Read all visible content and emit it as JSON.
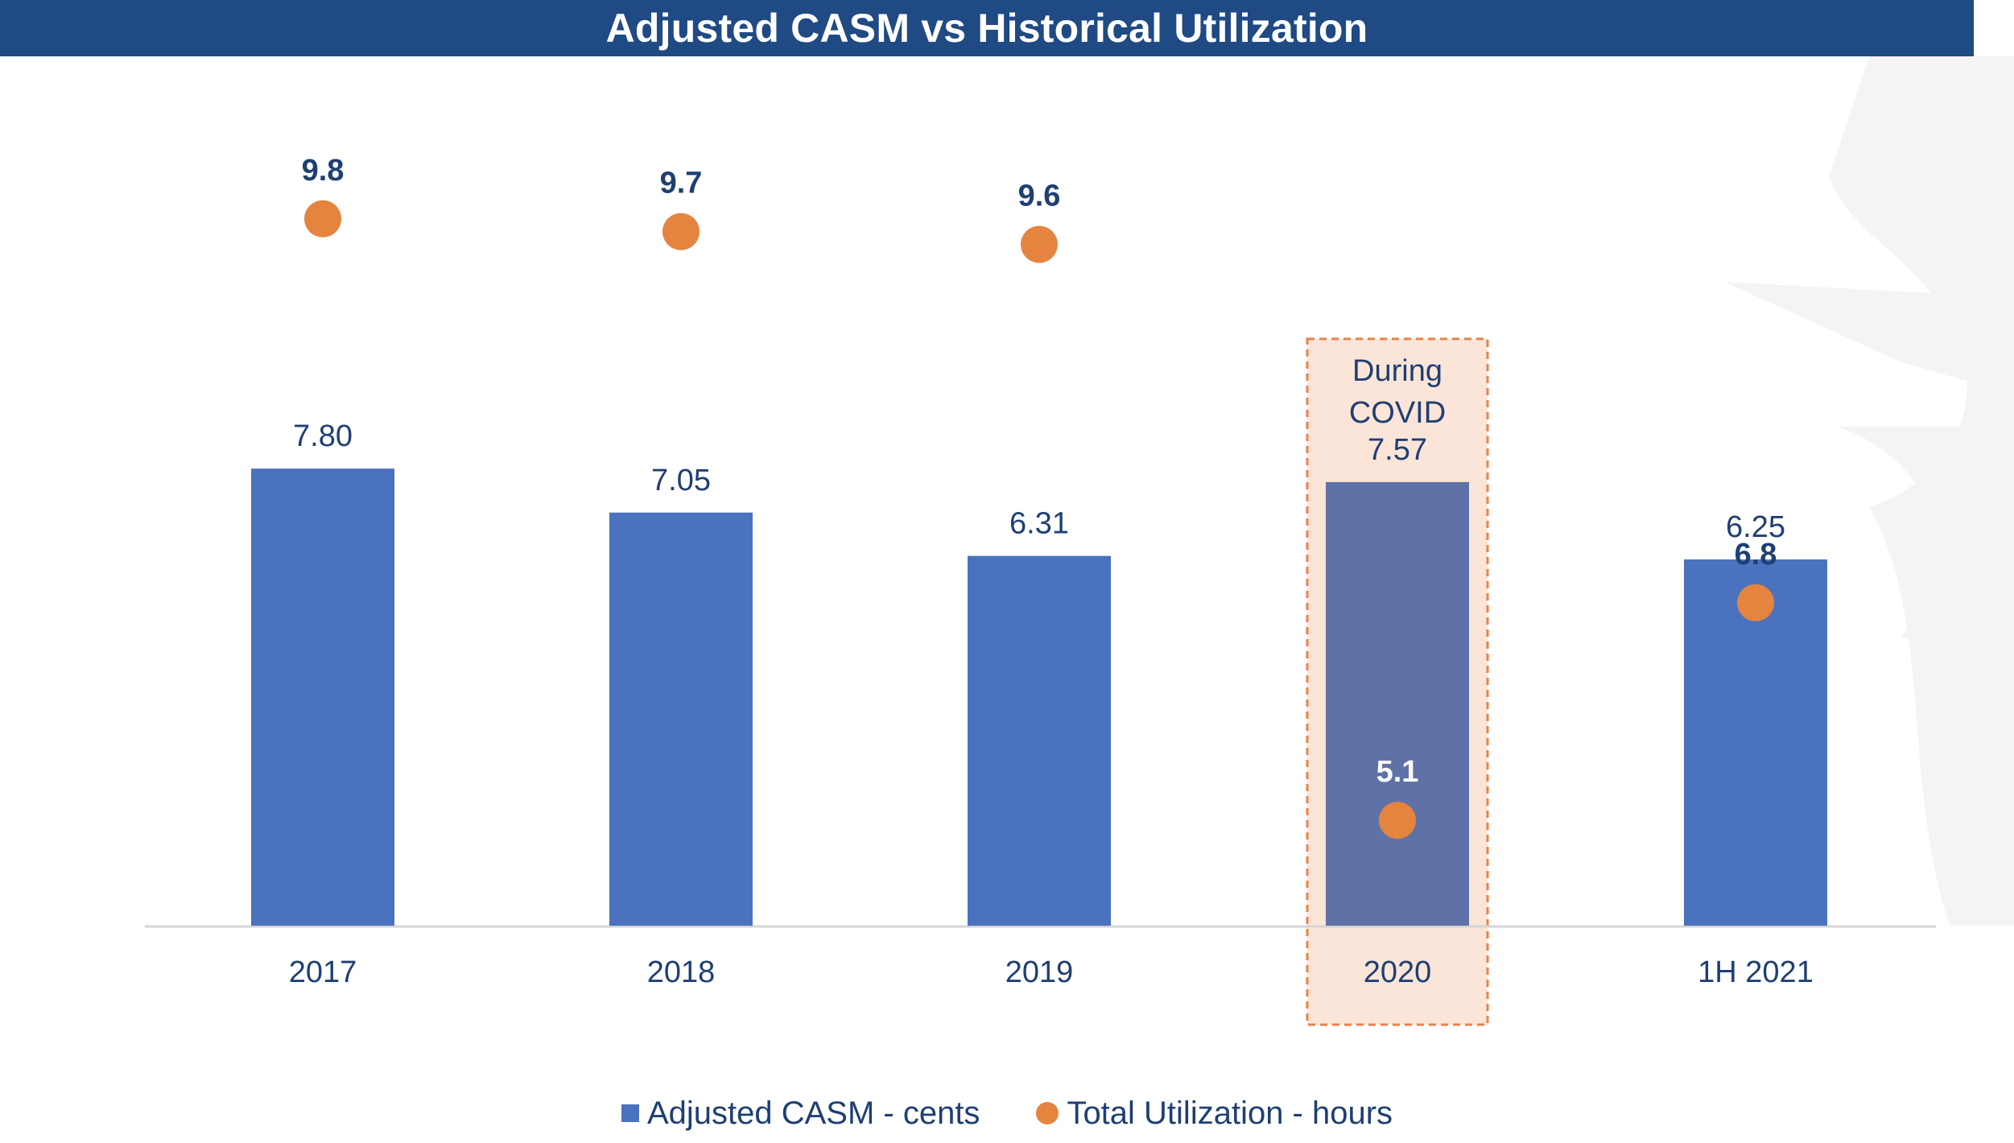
{
  "header": {
    "title": "Adjusted CASM vs Historical Utilization"
  },
  "colors": {
    "header_bg": "#1f4a84",
    "bar": "#4a72bf",
    "bar_highlight": "#5f72a8",
    "dot": "#e5843f",
    "highlight_fill": "#fbe5d8",
    "highlight_border": "#e8834a",
    "label_dark": "#1f3f73"
  },
  "legend": {
    "series_bar": "Adjusted CASM - cents",
    "series_dot": "Total Utilization - hours"
  },
  "annotation": {
    "line1": "During",
    "line2": "COVID",
    "category": "2020"
  },
  "chart_data": {
    "type": "bar",
    "title": "Adjusted CASM vs Historical Utilization",
    "categories": [
      "2017",
      "2018",
      "2019",
      "2020",
      "1H 2021"
    ],
    "series": [
      {
        "name": "Adjusted CASM - cents",
        "type": "bar",
        "values": [
          7.8,
          7.05,
          6.31,
          7.57,
          6.25
        ],
        "labels": [
          "7.80",
          "7.05",
          "6.31",
          "7.57",
          "6.25"
        ]
      },
      {
        "name": "Total Utilization - hours",
        "type": "scatter",
        "values": [
          9.8,
          9.7,
          9.6,
          5.1,
          6.8
        ],
        "labels": [
          "9.8",
          "9.7",
          "9.6",
          "5.1",
          "6.8"
        ]
      }
    ],
    "legend_position": "bottom",
    "grid": false
  }
}
